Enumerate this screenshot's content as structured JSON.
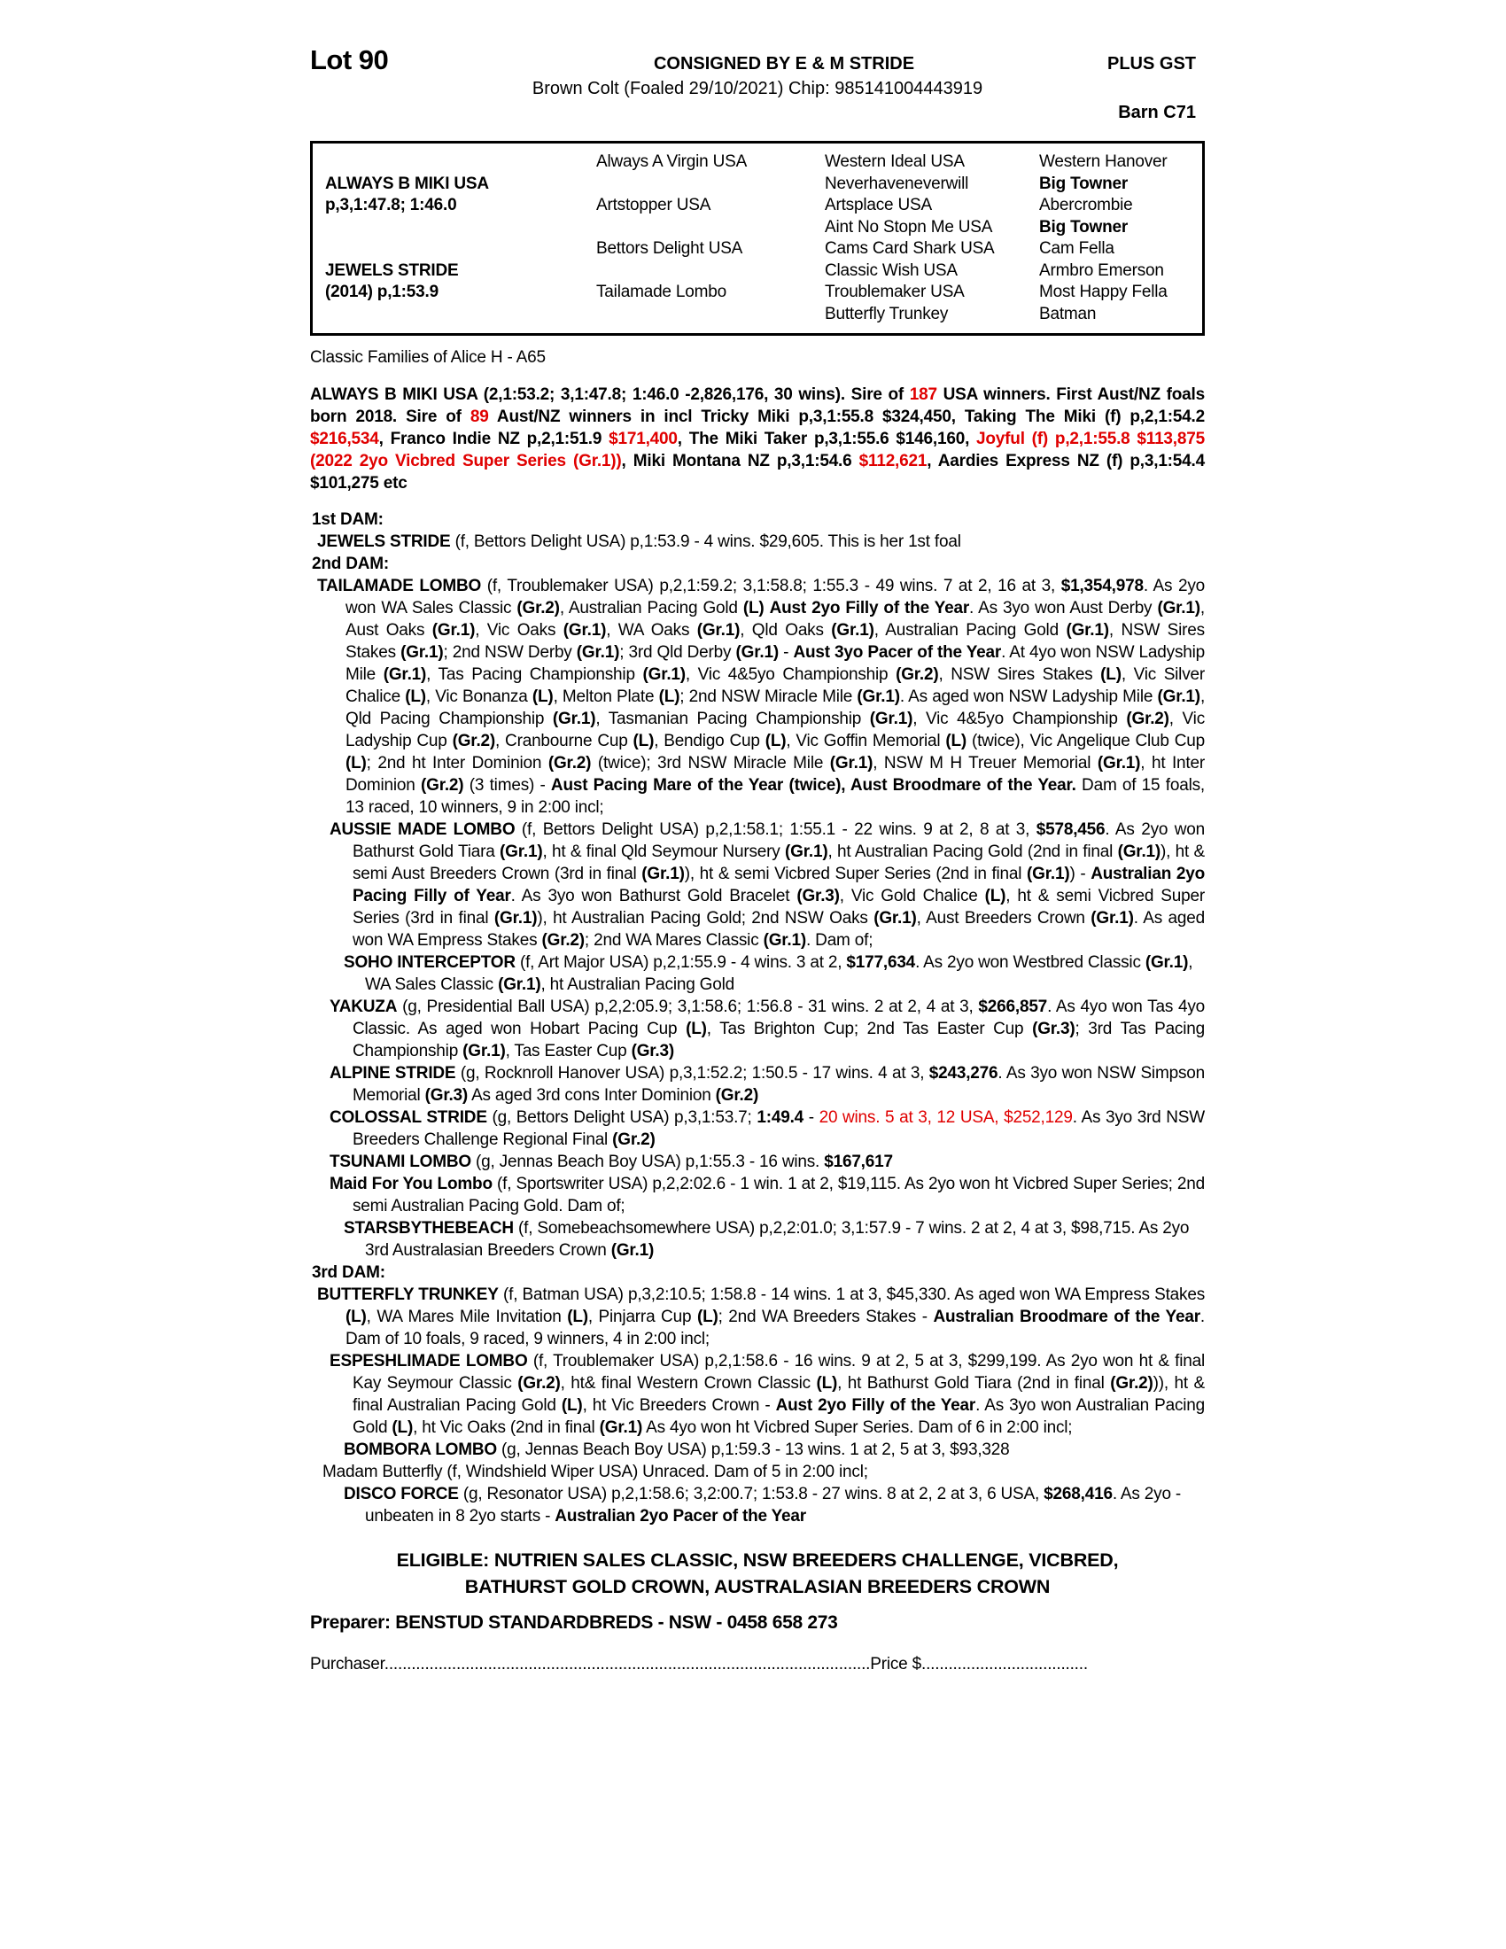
{
  "colors": {
    "red": "#e00000",
    "text": "#000000",
    "background": "#ffffff"
  },
  "header": {
    "lot": "Lot 90",
    "consigned": "CONSIGNED BY E & M STRIDE",
    "plus_gst": "PLUS GST",
    "description": "Brown Colt (Foaled 29/10/2021) Chip: 985141004443919",
    "barn": "Barn C71"
  },
  "pedigree": {
    "sire": {
      "name": "ALWAYS B MIKI USA",
      "record": "p,3,1:47.8; 1:46.0"
    },
    "dam": {
      "name": "JEWELS STRIDE",
      "record": "(2014) p,1:53.9"
    },
    "gen2": [
      "Always A Virgin USA",
      "Artstopper USA",
      "Bettors Delight USA",
      "Tailamade Lombo"
    ],
    "gen3": [
      "Western Ideal USA",
      "Neverhaveneverwill",
      "Artsplace USA",
      "Aint No Stopn Me USA",
      "Cams Card Shark USA",
      "Classic Wish USA",
      "Troublemaker USA",
      "Butterfly Trunkey"
    ],
    "gen4": [
      [
        {
          "t": "Western Hanover"
        }
      ],
      [
        {
          "t": "Big Towner",
          "b": 1
        }
      ],
      [
        {
          "t": "Abercrombie"
        }
      ],
      [
        {
          "t": "Big Towner",
          "b": 1
        }
      ],
      [
        {
          "t": "Cam Fella"
        }
      ],
      [
        {
          "t": "Armbro Emerson"
        }
      ],
      [
        {
          "t": "Most Happy Fella"
        }
      ],
      [
        {
          "t": "Batman"
        }
      ]
    ]
  },
  "family_line": "Classic Families of Alice H - A65",
  "body": {
    "sire": [
      {
        "t": "ALWAYS B MIKI USA (2,1:53.2; 3,1:47.8; 1:46.0 -2,826,176, 30 wins). Sire of "
      },
      {
        "t": "187",
        "r": 1
      },
      {
        "t": " USA winners. First Aust/NZ foals born 2018. Sire of "
      },
      {
        "t": "89",
        "r": 1
      },
      {
        "t": " Aust/NZ winners in incl Tricky Miki p,3,1:55.8 $324,450, Taking The Miki (f) p,2,1:54.2 "
      },
      {
        "t": "$216,534",
        "r": 1
      },
      {
        "t": ", Franco Indie NZ p,2,1:51.9 "
      },
      {
        "t": "$171,400",
        "r": 1
      },
      {
        "t": ", The Miki Taker p,3,1:55.6 $146,160, "
      },
      {
        "t": "Joyful (f) p,2,1:55.8 $113,875 (2022 2yo Vicbred Super Series (Gr.1))",
        "r": 1
      },
      {
        "t": ", Miki Montana NZ p,3,1:54.6 "
      },
      {
        "t": "$112,621",
        "r": 1
      },
      {
        "t": ", Aardies Express NZ (f) p,3,1:54.4 $101,275 etc"
      }
    ],
    "dam1_label": "1st DAM:",
    "jewels": [
      {
        "t": "JEWELS STRIDE",
        "b": 1
      },
      {
        "t": " (f, Bettors Delight USA) p,1:53.9 - 4 wins. $29,605. This is her 1st foal"
      }
    ],
    "dam2_label": "2nd DAM:",
    "tailamade": [
      {
        "t": "TAILAMADE LOMBO",
        "b": 1
      },
      {
        "t": " (f, Troublemaker USA) p,2,1:59.2; 3,1:58.8; 1:55.3 - 49 wins. 7 at 2, 16 at 3, "
      },
      {
        "t": "$1,354,978",
        "b": 1
      },
      {
        "t": ". As 2yo won WA Sales Classic "
      },
      {
        "t": "(Gr.2)",
        "b": 1
      },
      {
        "t": ", Australian Pacing Gold "
      },
      {
        "t": "(L)",
        "b": 1
      },
      {
        "t": " "
      },
      {
        "t": "Aust 2yo Filly of the Year",
        "b": 1
      },
      {
        "t": ". As 3yo won Aust Derby "
      },
      {
        "t": "(Gr.1)",
        "b": 1
      },
      {
        "t": ", Aust Oaks "
      },
      {
        "t": "(Gr.1)",
        "b": 1
      },
      {
        "t": ", Vic Oaks "
      },
      {
        "t": "(Gr.1)",
        "b": 1
      },
      {
        "t": ", WA Oaks "
      },
      {
        "t": "(Gr.1)",
        "b": 1
      },
      {
        "t": ", Qld Oaks "
      },
      {
        "t": "(Gr.1)",
        "b": 1
      },
      {
        "t": ", Australian Pacing Gold "
      },
      {
        "t": "(Gr.1)",
        "b": 1
      },
      {
        "t": ", NSW Sires Stakes "
      },
      {
        "t": "(Gr.1)",
        "b": 1
      },
      {
        "t": "; 2nd NSW Derby "
      },
      {
        "t": "(Gr.1)",
        "b": 1
      },
      {
        "t": "; 3rd Qld Derby "
      },
      {
        "t": "(Gr.1)",
        "b": 1
      },
      {
        "t": " - "
      },
      {
        "t": "Aust 3yo Pacer of the Year",
        "b": 1
      },
      {
        "t": ". At 4yo won NSW Ladyship Mile "
      },
      {
        "t": "(Gr.1)",
        "b": 1
      },
      {
        "t": ", Tas Pacing Championship "
      },
      {
        "t": "(Gr.1)",
        "b": 1
      },
      {
        "t": ", Vic 4&5yo Championship "
      },
      {
        "t": "(Gr.2)",
        "b": 1
      },
      {
        "t": ", NSW Sires Stakes "
      },
      {
        "t": "(L)",
        "b": 1
      },
      {
        "t": ", Vic Silver Chalice "
      },
      {
        "t": "(L)",
        "b": 1
      },
      {
        "t": ", Vic Bonanza "
      },
      {
        "t": "(L)",
        "b": 1
      },
      {
        "t": ", Melton Plate "
      },
      {
        "t": "(L)",
        "b": 1
      },
      {
        "t": "; 2nd NSW Miracle Mile "
      },
      {
        "t": "(Gr.1)",
        "b": 1
      },
      {
        "t": ". As aged won NSW Ladyship Mile "
      },
      {
        "t": "(Gr.1)",
        "b": 1
      },
      {
        "t": ", Qld Pacing Championship "
      },
      {
        "t": "(Gr.1)",
        "b": 1
      },
      {
        "t": ", Tasmanian Pacing Championship "
      },
      {
        "t": "(Gr.1)",
        "b": 1
      },
      {
        "t": ", Vic 4&5yo Championship "
      },
      {
        "t": "(Gr.2)",
        "b": 1
      },
      {
        "t": ", Vic Ladyship Cup "
      },
      {
        "t": "(Gr.2)",
        "b": 1
      },
      {
        "t": ", Cranbourne Cup "
      },
      {
        "t": "(L)",
        "b": 1
      },
      {
        "t": ", Bendigo Cup "
      },
      {
        "t": "(L)",
        "b": 1
      },
      {
        "t": ", Vic Goffin Memorial "
      },
      {
        "t": "(L)",
        "b": 1
      },
      {
        "t": " (twice), Vic Angelique Club Cup "
      },
      {
        "t": "(L)",
        "b": 1
      },
      {
        "t": "; 2nd ht Inter Dominion "
      },
      {
        "t": "(Gr.2)",
        "b": 1
      },
      {
        "t": " (twice); 3rd NSW Miracle Mile "
      },
      {
        "t": "(Gr.1)",
        "b": 1
      },
      {
        "t": ", NSW M H Treuer Memorial "
      },
      {
        "t": "(Gr.1)",
        "b": 1
      },
      {
        "t": ", ht Inter Dominion "
      },
      {
        "t": "(Gr.2)",
        "b": 1
      },
      {
        "t": " (3 times) - "
      },
      {
        "t": "Aust Pacing Mare of the Year (twice), Aust Broodmare of the Year.",
        "b": 1
      },
      {
        "t": " Dam of 15 foals, 13 raced, 10 winners, 9 in 2:00 incl;"
      }
    ],
    "aussie": [
      {
        "t": "AUSSIE MADE LOMBO",
        "b": 1
      },
      {
        "t": " (f, Bettors Delight USA) p,2,1:58.1; 1:55.1 - 22 wins. 9 at 2, 8 at 3, "
      },
      {
        "t": "$578,456",
        "b": 1
      },
      {
        "t": ". As 2yo won Bathurst Gold Tiara "
      },
      {
        "t": "(Gr.1)",
        "b": 1
      },
      {
        "t": ", ht & final Qld Seymour Nursery "
      },
      {
        "t": "(Gr.1)",
        "b": 1
      },
      {
        "t": ", ht Australian Pacing Gold (2nd in final "
      },
      {
        "t": "(Gr.1)",
        "b": 1
      },
      {
        "t": "), ht & semi Aust Breeders Crown (3rd in final "
      },
      {
        "t": "(Gr.1)",
        "b": 1
      },
      {
        "t": "), ht & semi Vicbred Super Series (2nd in final "
      },
      {
        "t": "(Gr.1)",
        "b": 1
      },
      {
        "t": ") - "
      },
      {
        "t": "Australian 2yo Pacing Filly of Year",
        "b": 1
      },
      {
        "t": ". As 3yo won Bathurst Gold Bracelet "
      },
      {
        "t": "(Gr.3)",
        "b": 1
      },
      {
        "t": ", Vic Gold Chalice "
      },
      {
        "t": "(L)",
        "b": 1
      },
      {
        "t": ", ht & semi Vicbred Super Series (3rd in final "
      },
      {
        "t": "(Gr.1)",
        "b": 1
      },
      {
        "t": "), ht Australian Pacing Gold; 2nd NSW Oaks "
      },
      {
        "t": "(Gr.1)",
        "b": 1
      },
      {
        "t": ", Aust Breeders Crown "
      },
      {
        "t": "(Gr.1)",
        "b": 1
      },
      {
        "t": ". As aged won WA Empress Stakes "
      },
      {
        "t": "(Gr.2)",
        "b": 1
      },
      {
        "t": "; 2nd WA Mares Classic "
      },
      {
        "t": "(Gr.1)",
        "b": 1
      },
      {
        "t": ". Dam of;"
      }
    ],
    "soho": [
      {
        "t": "SOHO INTERCEPTOR",
        "b": 1
      },
      {
        "t": " (f, Art Major USA) p,2,1:55.9 - 4 wins. 3 at 2, "
      },
      {
        "t": "$177,634",
        "b": 1
      },
      {
        "t": ". As 2yo won Westbred Classic "
      },
      {
        "t": "(Gr.1)",
        "b": 1
      },
      {
        "t": ", WA Sales Classic "
      },
      {
        "t": "(Gr.1)",
        "b": 1
      },
      {
        "t": ", ht Australian Pacing Gold"
      }
    ],
    "yakuza": [
      {
        "t": "YAKUZA",
        "b": 1
      },
      {
        "t": " (g, Presidential Ball USA) p,2,2:05.9; 3,1:58.6; 1:56.8 - 31 wins. 2 at 2, 4 at 3, "
      },
      {
        "t": "$266,857",
        "b": 1
      },
      {
        "t": ". As 4yo won Tas 4yo Classic. As aged won Hobart Pacing Cup "
      },
      {
        "t": "(L)",
        "b": 1
      },
      {
        "t": ", Tas Brighton Cup; 2nd Tas Easter Cup "
      },
      {
        "t": "(Gr.3)",
        "b": 1
      },
      {
        "t": "; 3rd Tas Pacing Championship "
      },
      {
        "t": "(Gr.1)",
        "b": 1
      },
      {
        "t": ", Tas Easter Cup "
      },
      {
        "t": "(Gr.3)",
        "b": 1
      }
    ],
    "alpine": [
      {
        "t": "ALPINE STRIDE",
        "b": 1
      },
      {
        "t": " (g, Rocknroll Hanover USA) p,3,1:52.2; 1:50.5 - 17 wins. 4 at 3, "
      },
      {
        "t": "$243,276",
        "b": 1
      },
      {
        "t": ". As 3yo won NSW Simpson Memorial "
      },
      {
        "t": "(Gr.3)",
        "b": 1
      },
      {
        "t": " As aged 3rd cons Inter Dominion "
      },
      {
        "t": "(Gr.2)",
        "b": 1
      }
    ],
    "colossal": [
      {
        "t": "COLOSSAL STRIDE",
        "b": 1
      },
      {
        "t": " (g, Bettors Delight USA) p,3,1:53.7; "
      },
      {
        "t": "1:49.4",
        "b": 1
      },
      {
        "t": " - "
      },
      {
        "t": "20 wins. 5 at 3, 12 USA, $252,129",
        "r": 1
      },
      {
        "t": ". As 3yo 3rd NSW Breeders Challenge Regional Final "
      },
      {
        "t": "(Gr.2)",
        "b": 1
      }
    ],
    "tsunami": [
      {
        "t": "TSUNAMI LOMBO",
        "b": 1
      },
      {
        "t": " (g, Jennas Beach Boy USA) p,1:55.3 - 16 wins. "
      },
      {
        "t": "$167,617",
        "b": 1
      }
    ],
    "maid": [
      {
        "t": "Maid For You Lombo",
        "b": 1
      },
      {
        "t": " (f, Sportswriter USA) p,2,2:02.6 - 1 win. 1 at 2, $19,115. As 2yo won ht Vicbred Super Series; 2nd semi Australian Pacing Gold. Dam of;"
      }
    ],
    "starsby": [
      {
        "t": "STARSBYTHEBEACH",
        "b": 1
      },
      {
        "t": " (f, Somebeachsomewhere USA) p,2,2:01.0; 3,1:57.9 - 7 wins. 2 at 2, 4 at 3, $98,715. As 2yo 3rd Australasian Breeders Crown "
      },
      {
        "t": "(Gr.1)",
        "b": 1
      }
    ],
    "dam3_label": "3rd DAM:",
    "butterfly": [
      {
        "t": "BUTTERFLY TRUNKEY",
        "b": 1
      },
      {
        "t": " (f, Batman USA) p,3,2:10.5; 1:58.8 - 14 wins. 1 at 3, $45,330. As aged won WA Empress Stakes "
      },
      {
        "t": "(L)",
        "b": 1
      },
      {
        "t": ", WA Mares Mile Invitation "
      },
      {
        "t": "(L)",
        "b": 1
      },
      {
        "t": ", Pinjarra Cup "
      },
      {
        "t": "(L)",
        "b": 1
      },
      {
        "t": "; 2nd WA Breeders Stakes - "
      },
      {
        "t": "Australian Broodmare of the Year",
        "b": 1
      },
      {
        "t": ". Dam of 10 foals, 9 raced, 9 winners, 4 in 2:00 incl;"
      }
    ],
    "espesh": [
      {
        "t": "ESPESHLIMADE LOMBO",
        "b": 1
      },
      {
        "t": " (f, Troublemaker USA) p,2,1:58.6 - 16 wins. 9 at 2, 5 at 3, $299,199. As 2yo won ht & final Kay Seymour Classic "
      },
      {
        "t": "(Gr.2)",
        "b": 1
      },
      {
        "t": ", ht& final Western Crown Classic "
      },
      {
        "t": "(L)",
        "b": 1
      },
      {
        "t": ", ht Bathurst Gold Tiara (2nd in final "
      },
      {
        "t": "(Gr.2)",
        "b": 1
      },
      {
        "t": ")), ht & final Australian Pacing Gold "
      },
      {
        "t": "(L)",
        "b": 1
      },
      {
        "t": ", ht Vic Breeders Crown - "
      },
      {
        "t": "Aust 2yo Filly of the Year",
        "b": 1
      },
      {
        "t": ". As 3yo won Australian Pacing Gold "
      },
      {
        "t": "(L)",
        "b": 1
      },
      {
        "t": ", ht Vic Oaks (2nd in final "
      },
      {
        "t": "(Gr.1)",
        "b": 1
      },
      {
        "t": " As 4yo won ht Vicbred Super Series. Dam of 6 in 2:00 incl;"
      }
    ],
    "bombora": [
      {
        "t": "BOMBORA LOMBO",
        "b": 1
      },
      {
        "t": " (g, Jennas Beach Boy USA) p,1:59.3 - 13 wins. 1 at 2, 5 at 3, $93,328"
      }
    ],
    "madam": [
      {
        "t": "Madam Butterfly (f, Windshield Wiper USA) Unraced. Dam of 5 in 2:00 incl;"
      }
    ],
    "disco": [
      {
        "t": "DISCO FORCE",
        "b": 1
      },
      {
        "t": " (g, Resonator USA) p,2,1:58.6; 3,2:00.7; 1:53.8 - 27 wins. 8 at 2, 2 at 3, 6 USA, "
      },
      {
        "t": "$268,416",
        "b": 1
      },
      {
        "t": ". As 2yo - unbeaten in 8 2yo starts - "
      },
      {
        "t": "Australian 2yo Pacer of the Year",
        "b": 1
      }
    ]
  },
  "footer": {
    "eligible_line1": "ELIGIBLE: NUTRIEN SALES CLASSIC, NSW BREEDERS CHALLENGE, VICBRED,",
    "eligible_line2": "BATHURST GOLD CROWN, AUSTRALASIAN BREEDERS CROWN",
    "preparer": "Preparer: BENSTUD STANDARDBREDS - NSW - 0458 658 273",
    "purchaser_label": "Purchaser",
    "purchaser_dots": "............................................................................................................",
    "price_label": "Price $",
    "price_dots": "....................................."
  }
}
